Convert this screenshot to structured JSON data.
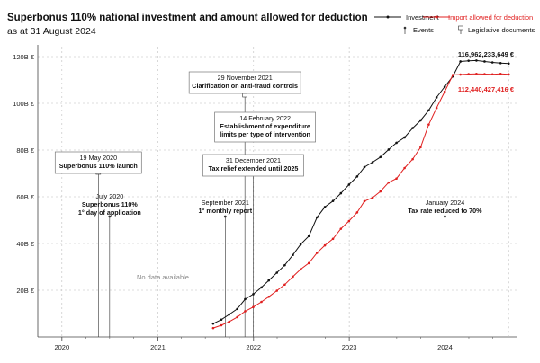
{
  "title": "Superbonus 110% national investment and amount allowed for deduction",
  "subtitle": "as at 31 August 2024",
  "legend": {
    "investment": "Investment",
    "deduction": "Import allowed for deduction",
    "events": "Events",
    "documents": "Legislative documents"
  },
  "no_data_label": "No data available",
  "colors": {
    "investment": "#111111",
    "deduction": "#e02020",
    "axis": "#555555",
    "grid": "#bdbdbd"
  },
  "chart_data": {
    "type": "line",
    "title": "Superbonus 110% national investment and amount allowed for deduction",
    "subtitle": "as at 31 August 2024",
    "xlabel": "",
    "ylabel": "",
    "xlim": [
      "2019-10-01",
      "2024-09-30"
    ],
    "ylim": [
      0,
      125
    ],
    "yticks": [
      20,
      40,
      60,
      80,
      100,
      120
    ],
    "ytick_labels": [
      "20B €",
      "40B €",
      "60B €",
      "80B €",
      "100B €",
      "120B €"
    ],
    "xticks": [
      "2020",
      "2021",
      "2022",
      "2023",
      "2024"
    ],
    "xtick_dates": [
      "2020-01-01",
      "2021-01-01",
      "2022-01-01",
      "2023-01-01",
      "2024-01-01"
    ],
    "grid": "y",
    "legend_position": "top-right",
    "end_labels": [
      "116,962,233,649 €",
      "112,440,427,416 €"
    ],
    "series": [
      {
        "name": "Investment",
        "dates": [
          "2021-07-31",
          "2021-08-31",
          "2021-09-30",
          "2021-10-31",
          "2021-11-30",
          "2021-12-31",
          "2022-01-31",
          "2022-02-28",
          "2022-03-31",
          "2022-04-30",
          "2022-05-31",
          "2022-06-30",
          "2022-07-31",
          "2022-08-31",
          "2022-09-30",
          "2022-10-31",
          "2022-11-30",
          "2022-12-31",
          "2023-01-31",
          "2023-02-28",
          "2023-03-31",
          "2023-04-30",
          "2023-05-31",
          "2023-06-30",
          "2023-07-31",
          "2023-08-31",
          "2023-09-30",
          "2023-10-31",
          "2023-11-30",
          "2023-12-31",
          "2024-01-31",
          "2024-02-29",
          "2024-03-31",
          "2024-04-30",
          "2024-05-31",
          "2024-06-30",
          "2024-07-31",
          "2024-08-31"
        ],
        "values": [
          5.7,
          7.4,
          9.6,
          12.0,
          16.2,
          18.3,
          21.2,
          24.2,
          27.5,
          30.7,
          35.1,
          39.7,
          43.2,
          51.2,
          55.6,
          58.2,
          61.5,
          65.2,
          68.7,
          72.7,
          74.8,
          77.0,
          80.2,
          83.1,
          85.4,
          89.4,
          92.7,
          97.0,
          102.5,
          107.1,
          111.5,
          117.9,
          118.2,
          118.3,
          117.9,
          117.5,
          117.2,
          117.0
        ]
      },
      {
        "name": "Import allowed for deduction",
        "dates": [
          "2021-07-31",
          "2021-08-31",
          "2021-09-30",
          "2021-10-31",
          "2021-11-30",
          "2021-12-31",
          "2022-01-31",
          "2022-02-28",
          "2022-03-31",
          "2022-04-30",
          "2022-05-31",
          "2022-06-30",
          "2022-07-31",
          "2022-08-31",
          "2022-09-30",
          "2022-10-31",
          "2022-11-30",
          "2022-12-31",
          "2023-01-31",
          "2023-02-28",
          "2023-03-31",
          "2023-04-30",
          "2023-05-31",
          "2023-06-30",
          "2023-07-31",
          "2023-08-31",
          "2023-09-30",
          "2023-10-31",
          "2023-11-30",
          "2023-12-31",
          "2024-01-31",
          "2024-02-29",
          "2024-03-31",
          "2024-04-30",
          "2024-05-31",
          "2024-06-30",
          "2024-07-31",
          "2024-08-31"
        ],
        "values": [
          3.8,
          5.0,
          6.5,
          8.5,
          11.0,
          12.8,
          15.0,
          17.2,
          19.8,
          22.4,
          25.8,
          29.0,
          31.6,
          36.0,
          39.2,
          42.0,
          46.3,
          49.6,
          53.3,
          58.1,
          59.6,
          62.3,
          66.1,
          67.8,
          72.3,
          76.1,
          81.2,
          90.9,
          98.0,
          105.0,
          112.1,
          112.3,
          112.5,
          112.6,
          112.5,
          112.4,
          112.6,
          112.4
        ]
      }
    ],
    "events": [
      {
        "date": "2020-05-19",
        "label_lines": [
          "19 May 2020",
          "Superbonus 110% launch"
        ],
        "type": "document"
      },
      {
        "date": "2020-07-01",
        "label_lines": [
          "July 2020",
          "Superbonus 110%",
          "1° day of application"
        ],
        "type": "event"
      },
      {
        "date": "2021-11-29",
        "label_lines": [
          "29 November 2021",
          "Clarification on anti-fraud controls"
        ],
        "type": "document"
      },
      {
        "date": "2021-09-15",
        "label_lines": [
          "September 2021",
          "1° monthly report"
        ],
        "type": "event"
      },
      {
        "date": "2021-12-31",
        "label_lines": [
          "31 December 2021",
          "Tax relief extended until 2025"
        ],
        "type": "document"
      },
      {
        "date": "2022-02-14",
        "label_lines": [
          "14 February 2022",
          "Establishment of expenditure",
          "limits per type of intervention"
        ],
        "type": "document"
      },
      {
        "date": "2024-01-01",
        "label_lines": [
          "January 2024",
          "Tax rate reduced to 70%"
        ],
        "type": "event"
      }
    ]
  }
}
